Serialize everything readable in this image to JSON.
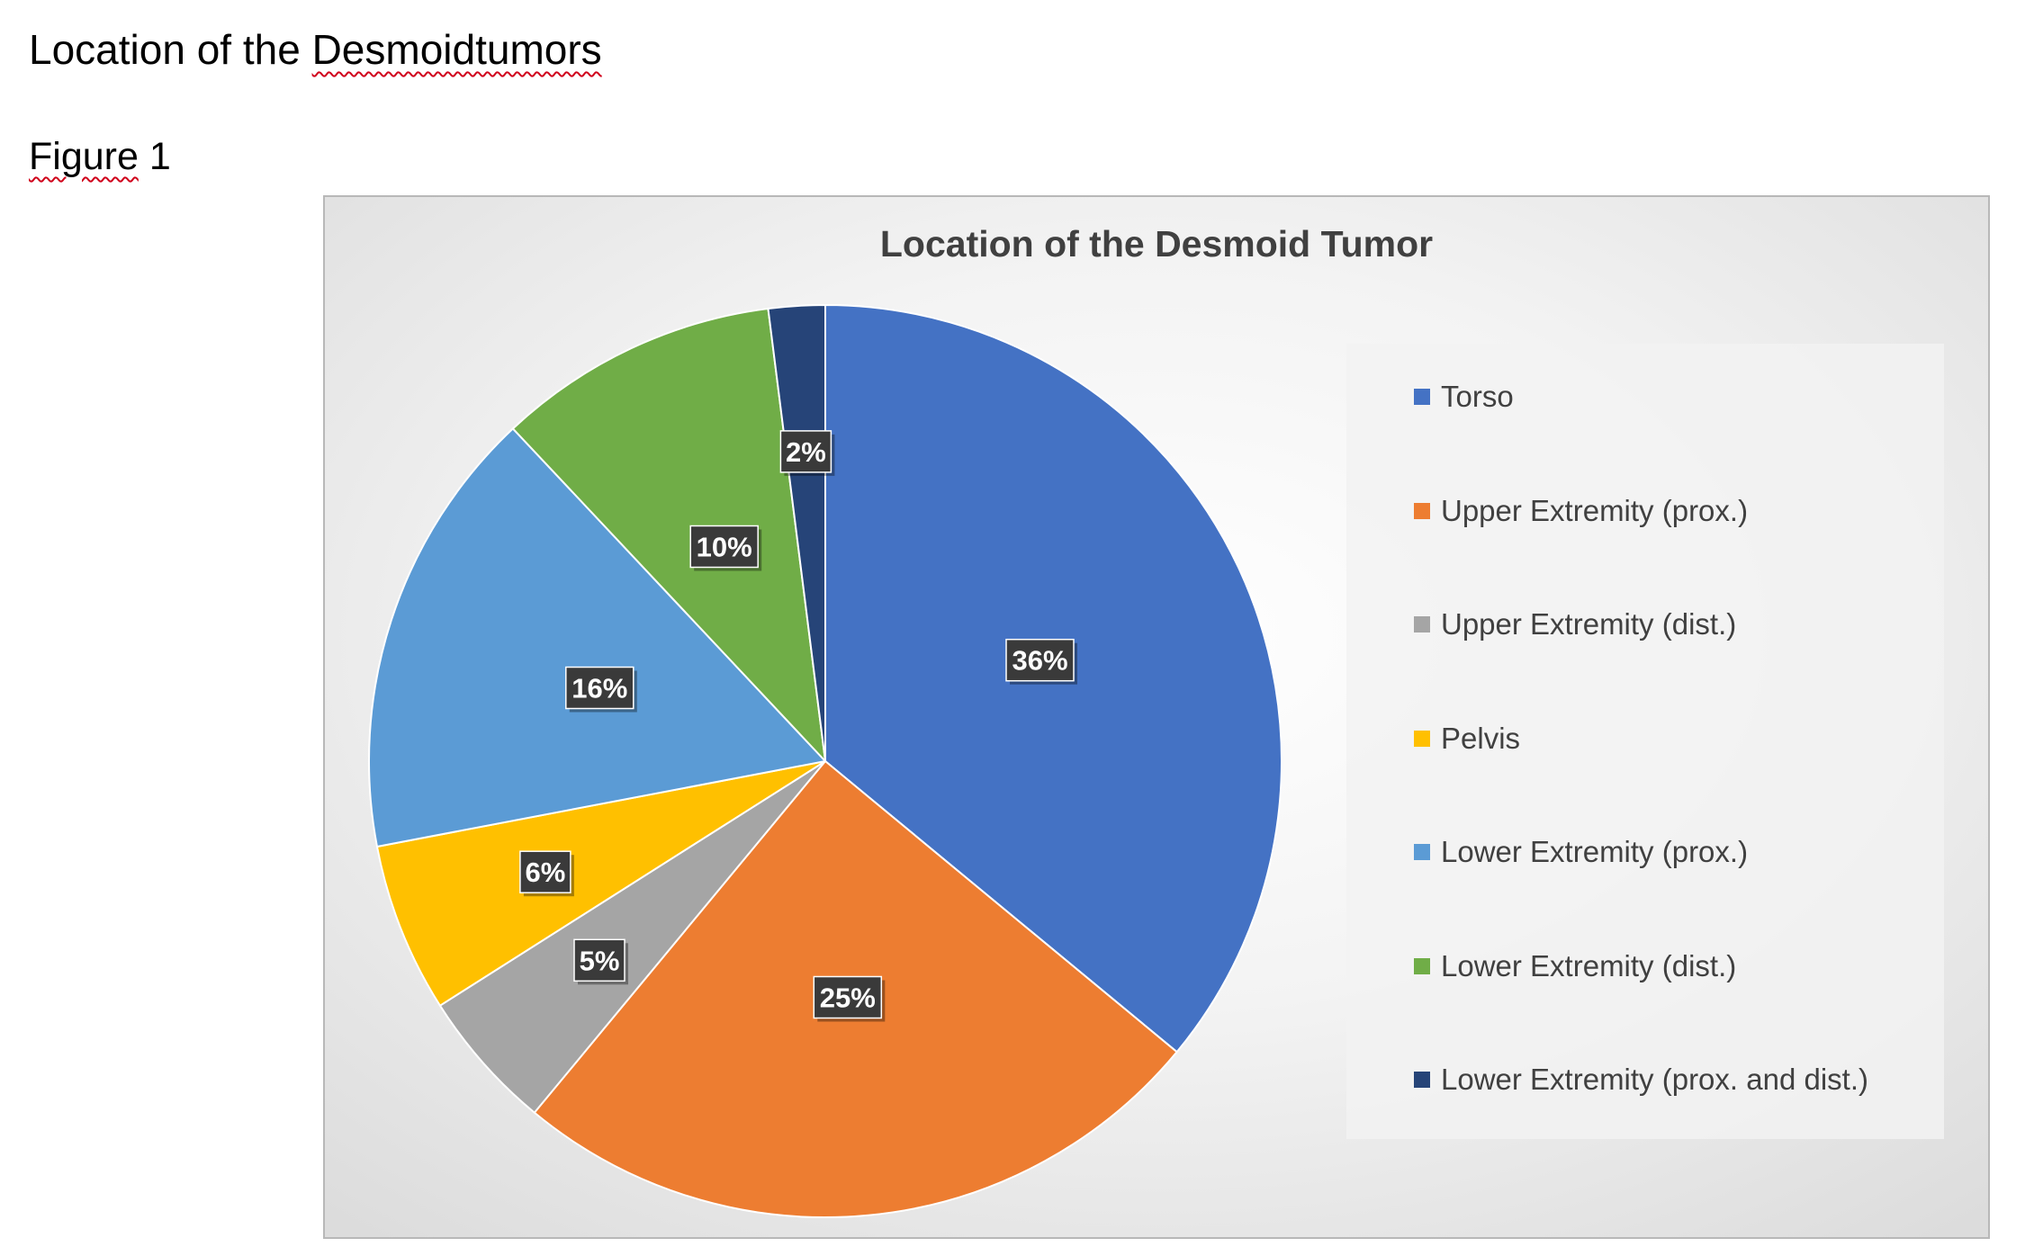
{
  "document": {
    "heading": "Location of the Desmoidtumors",
    "figure_label": "Figure 1"
  },
  "chart_data": {
    "type": "pie",
    "title": "Location of the Desmoid Tumor",
    "legend_position": "right",
    "categories": [
      "Torso",
      "Upper Extremity (prox.)",
      "Upper Extremity (dist.)",
      "Pelvis",
      "Lower Extremity (prox.)",
      "Lower Extremity (dist.)",
      "Lower Extremity (prox. and dist.)"
    ],
    "values": [
      36,
      25,
      5,
      6,
      16,
      10,
      2
    ],
    "labels": [
      "36%",
      "25%",
      "5%",
      "6%",
      "16%",
      "10%",
      "2%"
    ],
    "colors": [
      "#4472C4",
      "#ED7D31",
      "#A5A5A5",
      "#FFC000",
      "#5B9BD5",
      "#70AD47",
      "#264478"
    ],
    "start_angle_deg": 0,
    "direction": "clockwise"
  }
}
